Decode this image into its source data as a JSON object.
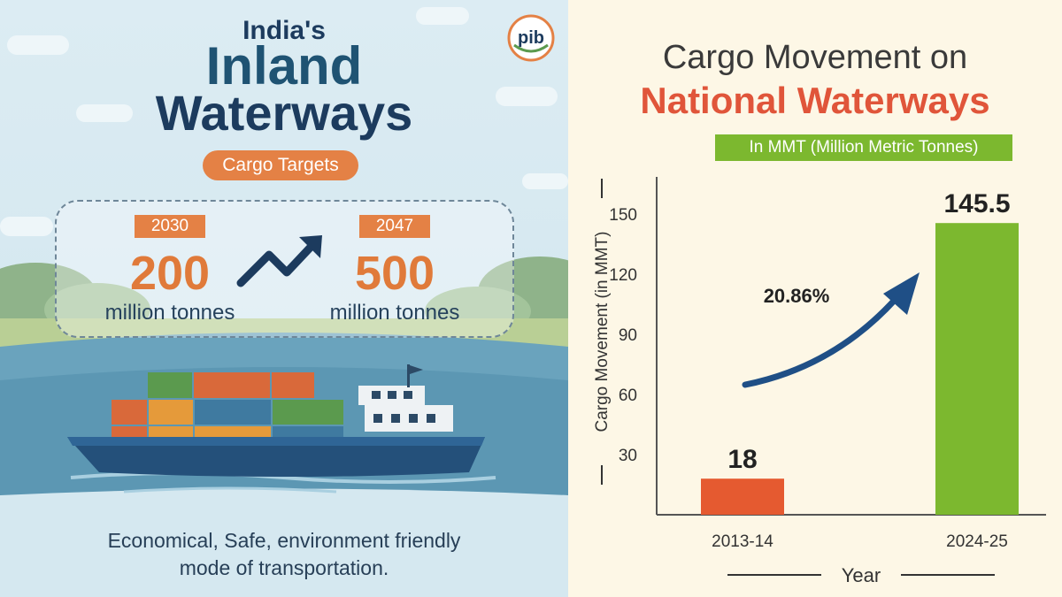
{
  "left": {
    "title_line1": "India's",
    "title_line2": "Inland",
    "title_line3": "Waterways",
    "pill_label": "Cargo Targets",
    "targets": [
      {
        "year": "2030",
        "value": "200",
        "unit": "million tonnes"
      },
      {
        "year": "2047",
        "value": "500",
        "unit": "million tonnes"
      }
    ],
    "logo_text": "pib",
    "tagline_line1": "Economical, Safe, environment friendly",
    "tagline_line2": "mode of transportation."
  },
  "colors": {
    "orange": "#e48145",
    "navy": "#1c3b5e",
    "red_bar": "#e55a30",
    "green_bar": "#7cb82f",
    "arrow": "#1f4f86"
  },
  "chart_data": {
    "type": "bar",
    "title": "Cargo Movement on",
    "subtitle": "National Waterways",
    "unit_banner": "In MMT (Million Metric Tonnes)",
    "categories": [
      "2013-14",
      "2024-25"
    ],
    "values": [
      18,
      145.5
    ],
    "data_labels": [
      "18",
      "145.5"
    ],
    "xlabel": "Year",
    "ylabel": "Cargo Movement (in MMT)",
    "yticks": [
      "30",
      "60",
      "90",
      "120",
      "150"
    ],
    "ylim": [
      0,
      150
    ],
    "annotation": "20.86%",
    "grid": false,
    "legend": "none"
  }
}
